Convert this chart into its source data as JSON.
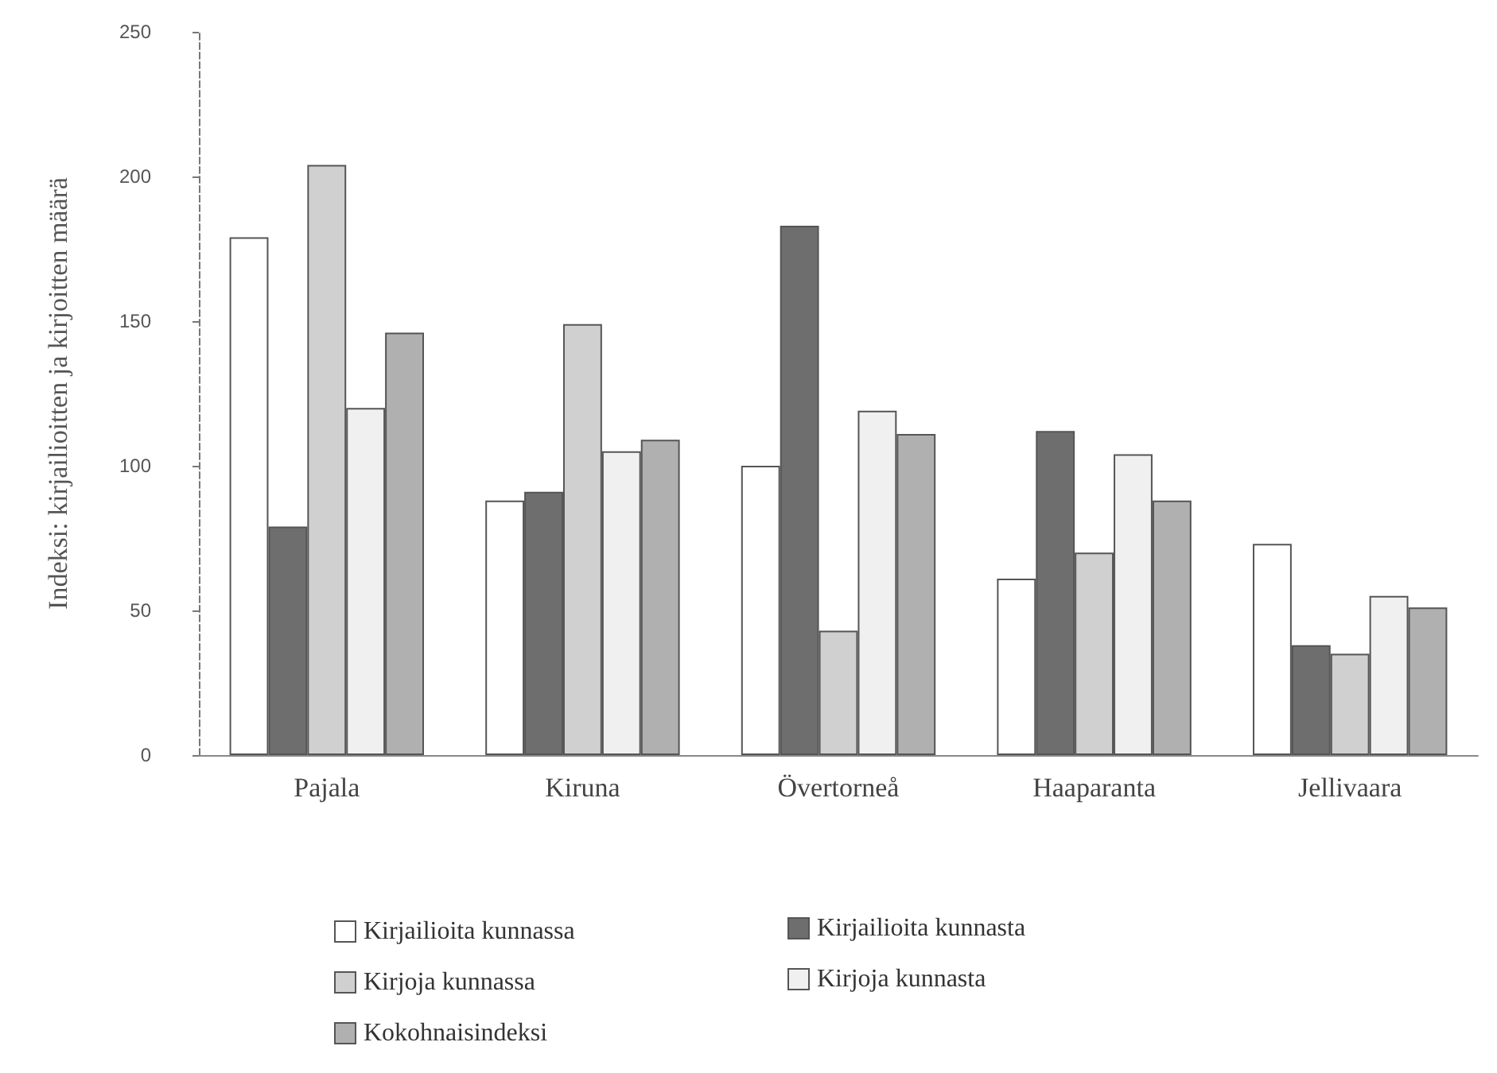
{
  "chart_data": {
    "type": "bar",
    "ylabel": "Indeksi: kirjailioitten ja kirjoitten määrä",
    "categories": [
      "Pajala",
      "Kiruna",
      "Övertorneå",
      "Haaparanta",
      "Jellivaara"
    ],
    "series": [
      {
        "name": "Kirjailioita kunnassa",
        "color": "#ffffff",
        "values": [
          179,
          88,
          100,
          61,
          73
        ]
      },
      {
        "name": "Kirjailioita kunnasta",
        "color": "#6e6e6e",
        "values": [
          79,
          91,
          183,
          112,
          38
        ]
      },
      {
        "name": "Kirjoja kunnassa",
        "color": "#d0d0d0",
        "values": [
          204,
          149,
          43,
          70,
          35
        ]
      },
      {
        "name": "Kirjoja kunnasta",
        "color": "#f0f0f0",
        "values": [
          120,
          105,
          119,
          104,
          55
        ]
      },
      {
        "name": "Kokohnaisindeksi",
        "color": "#b0b0b0",
        "values": [
          146,
          109,
          111,
          88,
          51
        ]
      }
    ],
    "ylim": [
      0,
      250
    ],
    "yticks": [
      0,
      50,
      100,
      150,
      200,
      250
    ],
    "grid": false,
    "legend": "bottom"
  }
}
